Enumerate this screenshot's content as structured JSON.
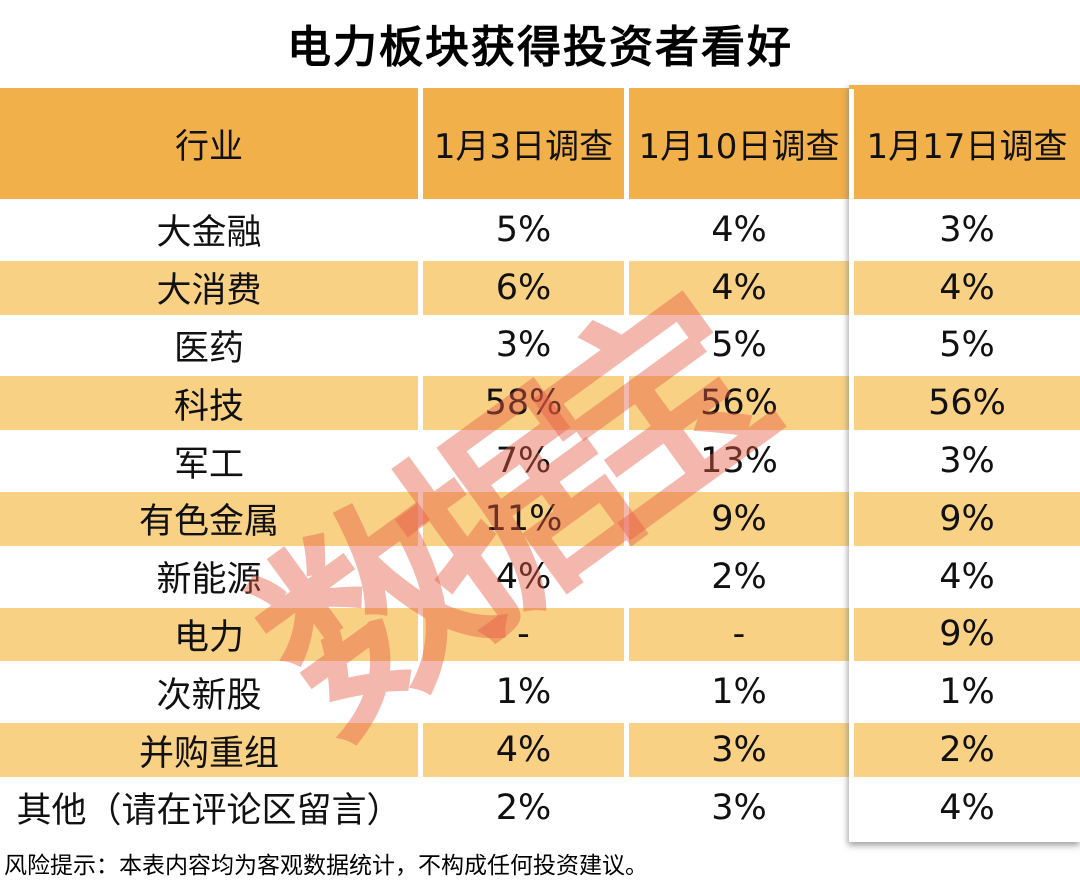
{
  "title": "电力板块获得投资者看好",
  "watermark": {
    "text": "数据宝",
    "color": "#E75B45"
  },
  "colors": {
    "header_bg": "#F2B04A",
    "row_alt_bg": "#F8D185",
    "row_bg": "#FFFFFF",
    "text": "#000000",
    "watermark": "rgba(231,91,69,0.44)"
  },
  "table": {
    "columns": [
      "行业",
      "1月3日调查",
      "1月10日调查",
      "1月17日调查"
    ],
    "rows": [
      {
        "industry": "大金融",
        "values": [
          "5%",
          "4%",
          "3%"
        ]
      },
      {
        "industry": "大消费",
        "values": [
          "6%",
          "4%",
          "4%"
        ]
      },
      {
        "industry": "医药",
        "values": [
          "3%",
          "5%",
          "5%"
        ]
      },
      {
        "industry": "科技",
        "values": [
          "58%",
          "56%",
          "56%"
        ]
      },
      {
        "industry": "军工",
        "values": [
          "7%",
          "13%",
          "3%"
        ]
      },
      {
        "industry": "有色金属",
        "values": [
          "11%",
          "9%",
          "9%"
        ]
      },
      {
        "industry": "新能源",
        "values": [
          "4%",
          "2%",
          "4%"
        ]
      },
      {
        "industry": "电力",
        "values": [
          "-",
          "-",
          "9%"
        ]
      },
      {
        "industry": "次新股",
        "values": [
          "1%",
          "1%",
          "1%"
        ]
      },
      {
        "industry": "并购重组",
        "values": [
          "4%",
          "3%",
          "2%"
        ]
      },
      {
        "industry": "其他（请在评论区留言）",
        "values": [
          "2%",
          "3%",
          "4%"
        ]
      }
    ]
  },
  "footer": "风险提示：本表内容均为客观数据统计，不构成任何投资建议。",
  "chart_data": {
    "type": "table",
    "title": "电力板块获得投资者看好",
    "categories": [
      "大金融",
      "大消费",
      "医药",
      "科技",
      "军工",
      "有色金属",
      "新能源",
      "电力",
      "次新股",
      "并购重组",
      "其他（请在评论区留言）"
    ],
    "series": [
      {
        "name": "1月3日调查",
        "values": [
          "5%",
          "6%",
          "3%",
          "58%",
          "7%",
          "11%",
          "4%",
          "-",
          "1%",
          "4%",
          "2%"
        ]
      },
      {
        "name": "1月10日调查",
        "values": [
          "4%",
          "4%",
          "5%",
          "56%",
          "13%",
          "9%",
          "2%",
          "-",
          "1%",
          "3%",
          "3%"
        ]
      },
      {
        "name": "1月17日调查",
        "values": [
          "3%",
          "4%",
          "5%",
          "56%",
          "3%",
          "9%",
          "4%",
          "9%",
          "1%",
          "2%",
          "4%"
        ]
      }
    ],
    "layout": {
      "highlighted_column": "1月17日调查",
      "alternating_row_shading": true
    }
  }
}
